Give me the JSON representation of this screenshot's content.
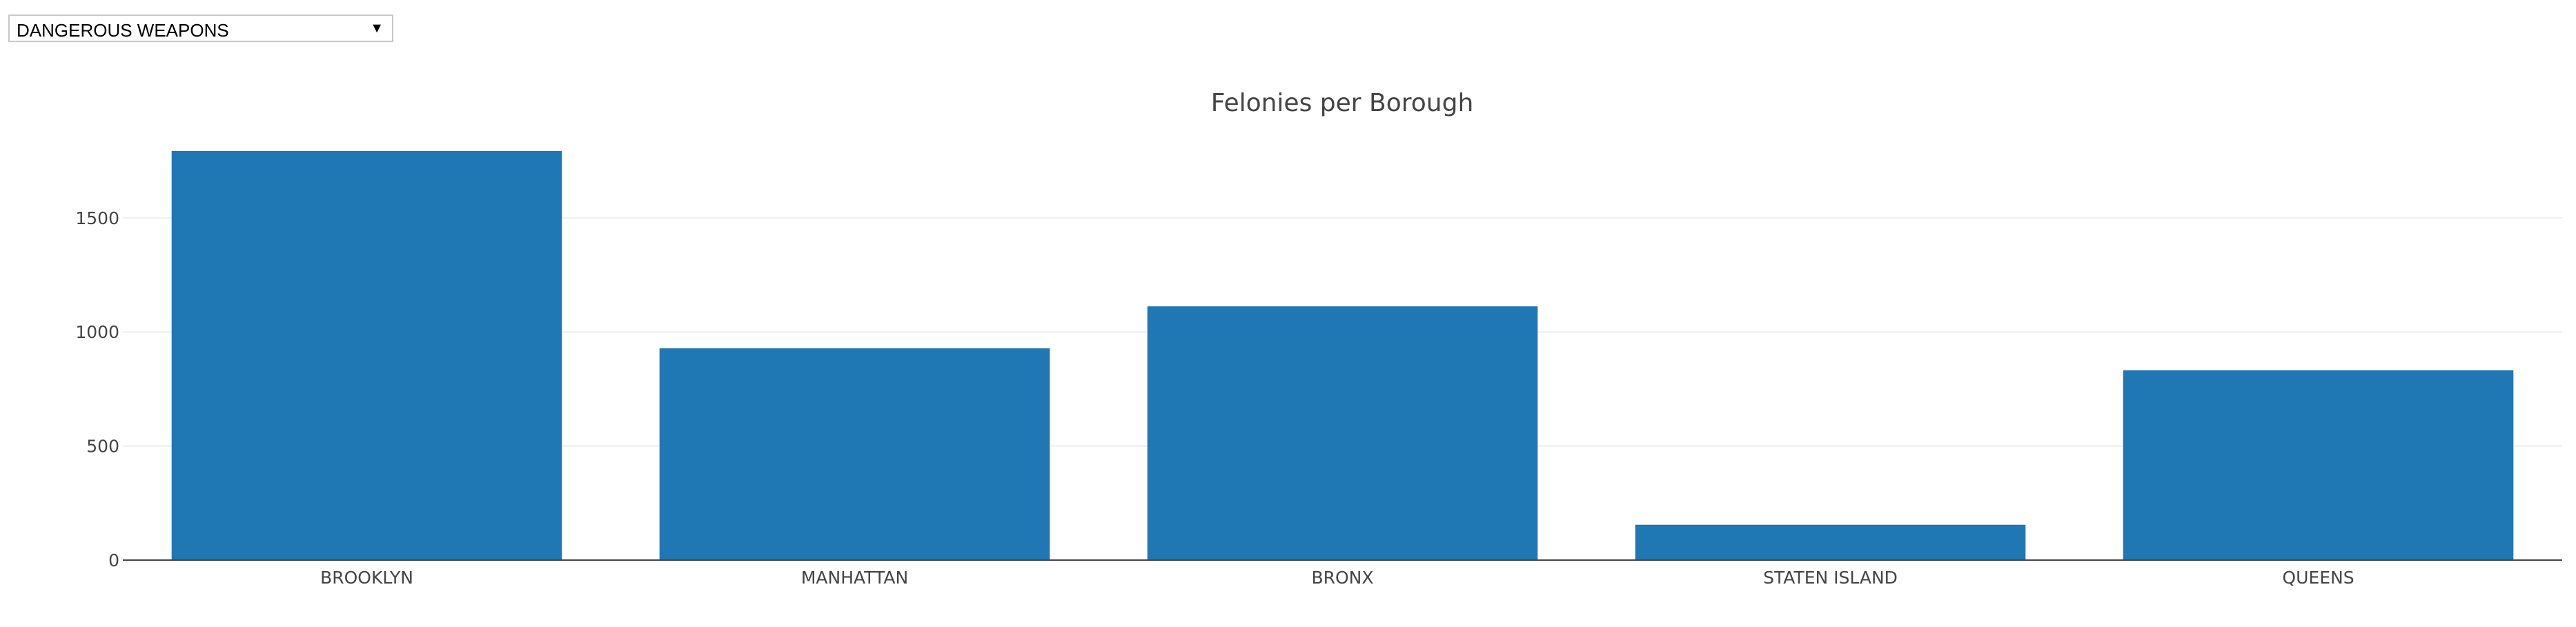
{
  "dropdown": {
    "selected": "DANGEROUS WEAPONS",
    "caret_icon": "triangle-down-icon"
  },
  "chart_data": {
    "type": "bar",
    "title": "Felonies per Borough",
    "xlabel": "",
    "ylabel": "",
    "categories": [
      "BROOKLYN",
      "MANHATTAN",
      "BRONX",
      "STATEN ISLAND",
      "QUEENS"
    ],
    "values": [
      1793,
      928,
      1112,
      155,
      832
    ],
    "ylim": [
      0,
      1850
    ],
    "yticks": [
      0,
      500,
      1000,
      1500
    ],
    "grid": true,
    "legend": "none",
    "colors": {
      "bar": "#1f77b4",
      "grid": "#eeeeee",
      "axis": "#444444",
      "text": "#444444"
    }
  }
}
